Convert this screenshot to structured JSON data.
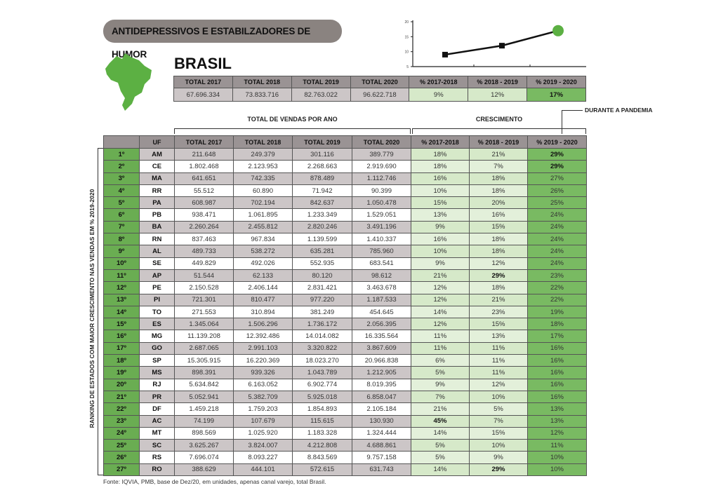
{
  "title": "ANTIDEPRESSIVOS E ESTABILZADORES DE HUMOR",
  "region": "BRASIL",
  "colors": {
    "rank_green": "#6aad52",
    "growth_light": "#d6e9c9",
    "growth_dark": "#79ba62",
    "header_gray": "#9a9394",
    "row_gray": "#ccc6c7"
  },
  "summary": {
    "headers": [
      "TOTAL 2017",
      "TOTAL 2018",
      "TOTAL 2019",
      "TOTAL 2020",
      "% 2017-2018",
      "% 2018 - 2019",
      "% 2019 - 2020"
    ],
    "values": [
      "67.696.334",
      "73.833.716",
      "82.763.022",
      "96.622.718",
      "9%",
      "12%",
      "17%"
    ]
  },
  "chart_data": {
    "type": "line",
    "x": [
      "2017-2018",
      "2018-2019",
      "2019-2020"
    ],
    "values": [
      9,
      12,
      17
    ],
    "yticks": [
      "20",
      "15",
      "10",
      "5"
    ],
    "ylim": [
      5,
      20
    ],
    "highlight_color": "#5cb043"
  },
  "group_labels": {
    "totals": "TOTAL DE VENDAS POR ANO",
    "growth": "CRESCIMENTO",
    "pandemic": "DURANTE A PANDEMIA"
  },
  "side_label": "RANKING DE ESTADOS COM MAIOR CRESCIMENTO NAS VENDAS EM % 2019-2020",
  "table": {
    "headers": [
      "",
      "UF",
      "TOTAL 2017",
      "TOTAL 2018",
      "TOTAL 2019",
      "TOTAL 2020",
      "% 2017-2018",
      "% 2018 - 2019",
      "% 2019 - 2020"
    ],
    "rows": [
      [
        "1º",
        "AM",
        "211.648",
        "249.379",
        "301.116",
        "389.779",
        "18%",
        "21%",
        "29%"
      ],
      [
        "2º",
        "CE",
        "1.802.468",
        "2.123.953",
        "2.268.663",
        "2.919.690",
        "18%",
        "7%",
        "29%"
      ],
      [
        "3º",
        "MA",
        "641.651",
        "742.335",
        "878.489",
        "1.112.746",
        "16%",
        "18%",
        "27%"
      ],
      [
        "4º",
        "RR",
        "55.512",
        "60.890",
        "71.942",
        "90.399",
        "10%",
        "18%",
        "26%"
      ],
      [
        "5º",
        "PA",
        "608.987",
        "702.194",
        "842.637",
        "1.050.478",
        "15%",
        "20%",
        "25%"
      ],
      [
        "6º",
        "PB",
        "938.471",
        "1.061.895",
        "1.233.349",
        "1.529.051",
        "13%",
        "16%",
        "24%"
      ],
      [
        "7º",
        "BA",
        "2.260.264",
        "2.455.812",
        "2.820.246",
        "3.491.196",
        "9%",
        "15%",
        "24%"
      ],
      [
        "8º",
        "RN",
        "837.463",
        "967.834",
        "1.139.599",
        "1.410.337",
        "16%",
        "18%",
        "24%"
      ],
      [
        "9º",
        "AL",
        "489.733",
        "538.272",
        "635.281",
        "785.960",
        "10%",
        "18%",
        "24%"
      ],
      [
        "10º",
        "SE",
        "449.829",
        "492.026",
        "552.935",
        "683.541",
        "9%",
        "12%",
        "24%"
      ],
      [
        "11º",
        "AP",
        "51.544",
        "62.133",
        "80.120",
        "98.612",
        "21%",
        "29%",
        "23%"
      ],
      [
        "12º",
        "PE",
        "2.150.528",
        "2.406.144",
        "2.831.421",
        "3.463.678",
        "12%",
        "18%",
        "22%"
      ],
      [
        "13º",
        "PI",
        "721.301",
        "810.477",
        "977.220",
        "1.187.533",
        "12%",
        "21%",
        "22%"
      ],
      [
        "14º",
        "TO",
        "271.553",
        "310.894",
        "381.249",
        "454.645",
        "14%",
        "23%",
        "19%"
      ],
      [
        "15º",
        "ES",
        "1.345.064",
        "1.506.296",
        "1.736.172",
        "2.056.395",
        "12%",
        "15%",
        "18%"
      ],
      [
        "16º",
        "MG",
        "11.139.208",
        "12.392.486",
        "14.014.082",
        "16.335.564",
        "11%",
        "13%",
        "17%"
      ],
      [
        "17º",
        "GO",
        "2.687.065",
        "2.991.103",
        "3.320.822",
        "3.867.609",
        "11%",
        "11%",
        "16%"
      ],
      [
        "18º",
        "SP",
        "15.305.915",
        "16.220.369",
        "18.023.270",
        "20.966.838",
        "6%",
        "11%",
        "16%"
      ],
      [
        "19º",
        "MS",
        "898.391",
        "939.326",
        "1.043.789",
        "1.212.905",
        "5%",
        "11%",
        "16%"
      ],
      [
        "20º",
        "RJ",
        "5.634.842",
        "6.163.052",
        "6.902.774",
        "8.019.395",
        "9%",
        "12%",
        "16%"
      ],
      [
        "21º",
        "PR",
        "5.052.941",
        "5.382.709",
        "5.925.018",
        "6.858.047",
        "7%",
        "10%",
        "16%"
      ],
      [
        "22º",
        "DF",
        "1.459.218",
        "1.759.203",
        "1.854.893",
        "2.105.184",
        "21%",
        "5%",
        "13%"
      ],
      [
        "23º",
        "AC",
        "74.199",
        "107.679",
        "115.615",
        "130.930",
        "45%",
        "7%",
        "13%"
      ],
      [
        "24º",
        "MT",
        "898.569",
        "1.025.920",
        "1.183.328",
        "1.324.444",
        "14%",
        "15%",
        "12%"
      ],
      [
        "25º",
        "SC",
        "3.625.267",
        "3.824.007",
        "4.212.808",
        "4.688.861",
        "5%",
        "10%",
        "11%"
      ],
      [
        "26º",
        "RS",
        "7.696.074",
        "8.093.227",
        "8.843.569",
        "9.757.158",
        "5%",
        "9%",
        "10%"
      ],
      [
        "27º",
        "RO",
        "388.629",
        "444.101",
        "572.615",
        "631.743",
        "14%",
        "29%",
        "10%"
      ]
    ]
  },
  "footnote": "Fonte:  IQVIA, PMB, base de Dez/20, em unidades, apenas canal varejo, total Brasil."
}
